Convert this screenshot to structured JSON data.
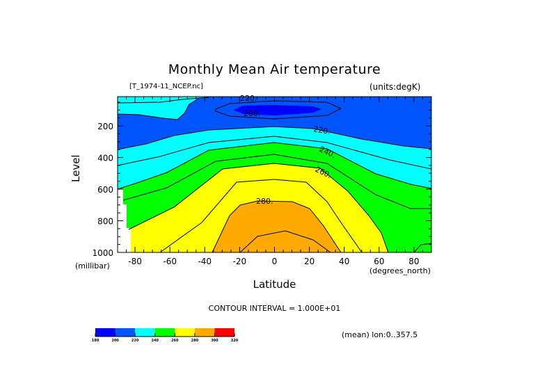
{
  "chart_data": {
    "type": "contour",
    "title": "Monthly Mean Air temperature",
    "file_label": "[T_1974-11_NCEP.nc]",
    "units_label": "(units:degK)",
    "xlabel": "Latitude",
    "x_units": "(degrees_north)",
    "ylabel": "Level",
    "y_units": "(millibar)",
    "xlim": [
      -90,
      90
    ],
    "ylim": [
      1000,
      10
    ],
    "x_ticks": [
      -80,
      -60,
      -40,
      -20,
      0,
      20,
      40,
      60,
      80
    ],
    "x_tick_labels": [
      "-80",
      "-60",
      "-40",
      "-20",
      "0",
      "20",
      "40",
      "60",
      "80"
    ],
    "y_ticks": [
      200,
      400,
      600,
      800,
      1000
    ],
    "y_tick_labels": [
      "200",
      "400",
      "600",
      "800",
      "1000"
    ],
    "contour_interval": 10,
    "contour_interval_text": "CONTOUR INTERVAL = 1.000E+01",
    "contour_labels": [
      "220.",
      "200.",
      "220.",
      "240.",
      "260.",
      "280."
    ],
    "colorbar": {
      "levels": [
        180,
        200,
        220,
        240,
        260,
        280,
        300,
        320
      ],
      "level_labels": [
        "180",
        "200",
        "220",
        "240",
        "260",
        "280",
        "300",
        "320"
      ],
      "colors": [
        "#0000ff",
        "#0055ff",
        "#00ffff",
        "#00ff00",
        "#ffff00",
        "#ffaa00",
        "#ff0000"
      ]
    },
    "footer_note": "(mean) lon:0..357.5",
    "missing_color": "#ffffff",
    "line_color": "#000000"
  }
}
